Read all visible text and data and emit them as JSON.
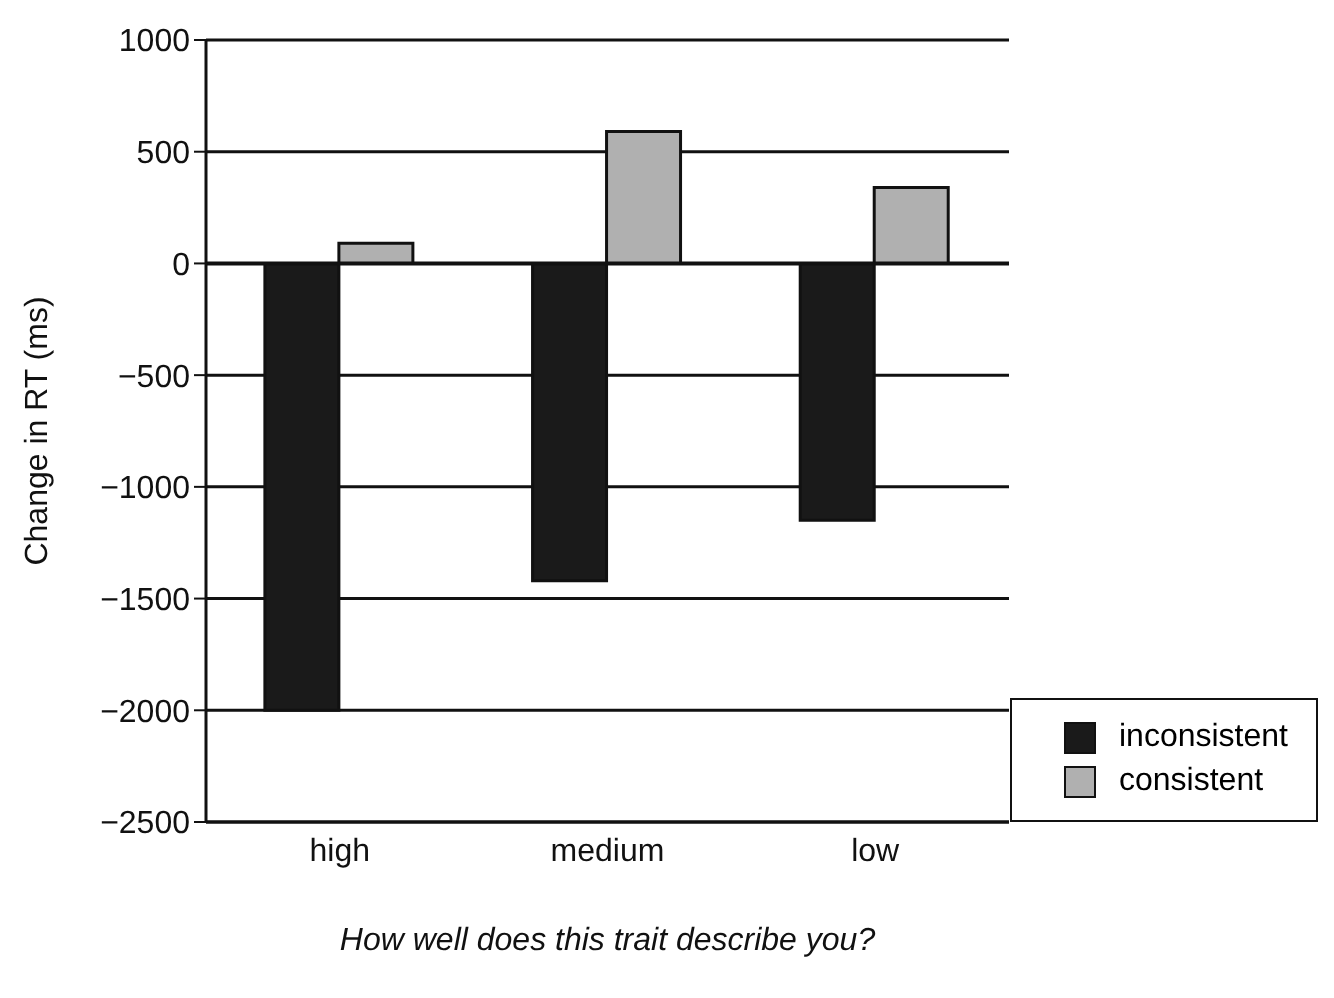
{
  "chart_data": {
    "type": "bar",
    "xlabel": "How well does this trait describe you?",
    "ylabel": "Change in RT (ms)",
    "categories": [
      "high",
      "medium",
      "low"
    ],
    "series": [
      {
        "name": "inconsistent",
        "color": "#1a1a1a",
        "values": [
          -2000,
          -1420,
          -1150
        ]
      },
      {
        "name": "consistent",
        "color": "#b0b0b0",
        "values": [
          90,
          590,
          340
        ]
      }
    ],
    "ylim": [
      -2500,
      1000
    ],
    "yticks": [
      {
        "value": -2500,
        "label": "−2500"
      },
      {
        "value": -2000,
        "label": "−2000"
      },
      {
        "value": -1500,
        "label": "−1500"
      },
      {
        "value": -1000,
        "label": "−1000"
      },
      {
        "value": -500,
        "label": "−500"
      },
      0,
      500,
      1000
    ],
    "grid": "y",
    "legend": "bottom right"
  }
}
